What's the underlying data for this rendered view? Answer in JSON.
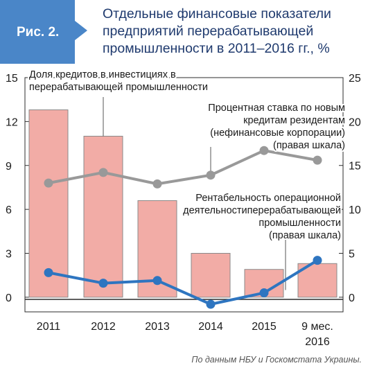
{
  "badge": "Рис. 2.",
  "title_lines": [
    "Отдельные финансовые показатели",
    "предприятий перерабатывающей",
    "промышленности в 2011–2016 гг., %"
  ],
  "source": "По данным НБУ и Госкомстата Украины.",
  "colors": {
    "badge": "#4a86c8",
    "title": "#1f3a6e",
    "bar_fill": "#f2aca6",
    "bar_stroke": "#8a8a8a",
    "rate_line": "#999999",
    "profit_line": "#2e75c0"
  },
  "chart_data": {
    "type": "bar+line",
    "categories": [
      [
        "2011"
      ],
      [
        "2012"
      ],
      [
        "2013"
      ],
      [
        "2014"
      ],
      [
        "2015"
      ],
      [
        "9 мес.",
        "2016"
      ]
    ],
    "left_axis": {
      "ticks": [
        "0",
        "3",
        "6",
        "9",
        "12",
        "15"
      ],
      "range": [
        -1.0,
        15
      ]
    },
    "right_axis": {
      "ticks": [
        "0",
        "5",
        "10",
        "15",
        "20",
        "25"
      ],
      "range": [
        -1.6667,
        25
      ]
    },
    "grid": false,
    "series": [
      {
        "name": "Доля кредитов в инвестициях в перерабатывающей промышленности",
        "axis": "left",
        "kind": "bar",
        "values": [
          12.8,
          11.0,
          6.6,
          3.0,
          1.9,
          2.3
        ]
      },
      {
        "name": "Процентная ставка по новым кредитам резидентам (нефинансовые корпорации) (правая шкала)",
        "axis": "right",
        "kind": "line",
        "values": [
          13.0,
          14.2,
          12.9,
          13.9,
          16.7,
          15.6
        ]
      },
      {
        "name": "Рентабельность операционной деятельностиперерабатывающей промышленности (правая шкала)",
        "axis": "right",
        "kind": "line",
        "values": [
          2.8,
          1.6,
          1.9,
          -0.8,
          0.5,
          4.2
        ]
      }
    ],
    "annotations": [
      {
        "target": "bars",
        "lines": [
          "Доля кредитов в инвестициях в",
          "перерабатывающей промышленности"
        ]
      },
      {
        "target": "rate",
        "lines": [
          "Процентная ставка по новым",
          "кредитам резидентам",
          "(нефинансовые корпорации)",
          "(правая шкала)"
        ]
      },
      {
        "target": "profit",
        "lines": [
          "Рентабельность операционной",
          "деятельностиперерабатывающей",
          "промышленности",
          "(правая шкала)"
        ]
      }
    ]
  }
}
